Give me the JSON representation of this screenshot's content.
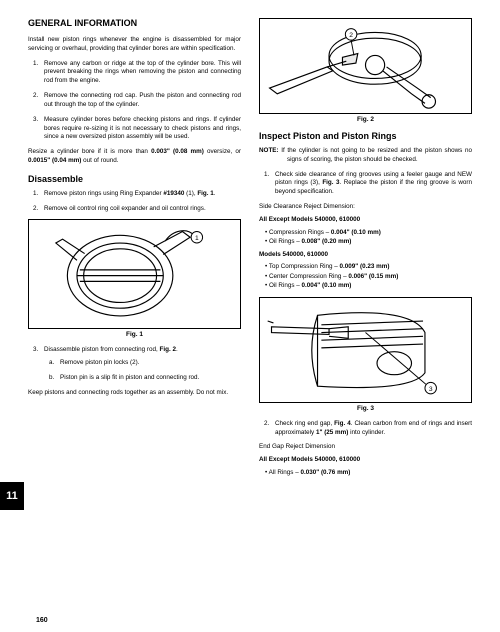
{
  "page_number": "160",
  "chapter_tab": "11",
  "left": {
    "h1": "GENERAL INFORMATION",
    "intro": "Install new piston rings whenever the engine is disassembled for major servicing or overhaul, providing that cylinder bores are within specification.",
    "steps": [
      "Remove any carbon or ridge at the top of the cylinder bore. This will prevent breaking the rings when removing the piston and connecting rod from the engine.",
      "Remove the connecting rod cap. Push the piston and connecting rod out through the top of the cylinder.",
      "Measure cylinder bores before checking pistons and rings. If cylinder bores require re-sizing it is not necessary to check pistons and rings, since a new oversized piston assembly will be used."
    ],
    "resize_1": "Resize a cylinder bore if it is more than ",
    "resize_b1": "0.003\" (0.08 mm)",
    "resize_mid": " oversize, or ",
    "resize_b2": "0.0015\" (0.04 mm)",
    "resize_end": " out of round.",
    "h2_dis": "Disassemble",
    "dis_1a": "Remove piston rings using Ring Expander ",
    "dis_1b": "#19340",
    "dis_1c": " (1), ",
    "dis_1d": "Fig. 1",
    "dis_1e": ".",
    "dis_2": "Remove oil control ring coil expander and oil control rings.",
    "fig1_cap": "Fig. 1",
    "dis_3a": "Disassemble piston from connecting rod, ",
    "dis_3b": "Fig. 2",
    "dis_3c": ".",
    "dis_3_sub_a": "Remove piston pin locks (2).",
    "dis_3_sub_b": "Piston pin is a slip fit in piston and connecting rod.",
    "keep": "Keep pistons and connecting rods together as an assembly. Do not mix."
  },
  "right": {
    "fig2_cap": "Fig. 2",
    "h2_ins": "Inspect Piston and Piston Rings",
    "note_lead": "NOTE:",
    "note_body": "  If the cylinder is not going to be resized and the piston shows no signs of scoring, the piston should be checked.",
    "ins_1a": "Check side clearance of ring grooves using a feeler gauge and NEW piston rings (3), ",
    "ins_1b": "Fig. 3",
    "ins_1c": ". Replace the piston if the ring groove is worn beyond specification.",
    "side_lbl": "Side Clearance Reject Dimension:",
    "grpA_title": "All Except Models 540000, 610000",
    "grpA_items": [
      "Compression Rings – 0.004\" (0.10 mm)",
      "Oil Rings – 0.008\" (0.20 mm)"
    ],
    "grpB_title": "Models 540000, 610000",
    "grpB_items": [
      "Top Compression Ring – 0.009\" (0.23 mm)",
      "Center Compression Ring – 0.006\" (0.15 mm)",
      "Oil Rings – 0.004\" (0.10 mm)"
    ],
    "fig3_cap": "Fig. 3",
    "ins_2a": "Check ring end gap, ",
    "ins_2b": "Fig. 4",
    "ins_2c": ". Clean carbon from end of rings and insert approximately ",
    "ins_2d": "1\" (25 mm)",
    "ins_2e": " into cylinder.",
    "endgap_lbl": "End Gap Reject Dimension",
    "grpC_title": "All Except Models 540000, 610000",
    "grpC_items": [
      "All Rings – 0.030\" (0.76 mm)"
    ]
  }
}
